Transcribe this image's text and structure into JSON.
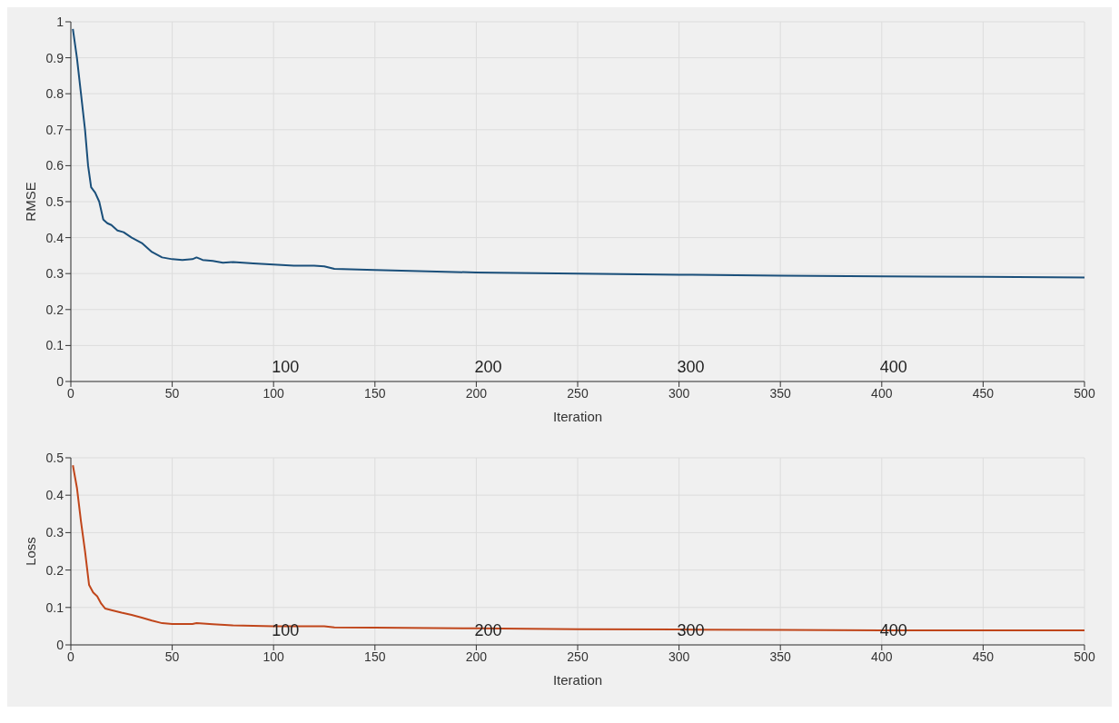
{
  "chart_data": [
    {
      "type": "line",
      "xlabel": "Iteration",
      "ylabel": "RMSE",
      "xlim": [
        0,
        500
      ],
      "xticks": [
        0,
        50,
        100,
        150,
        200,
        250,
        300,
        350,
        400,
        450,
        500
      ],
      "ylim": [
        0,
        1
      ],
      "yticks": [
        0,
        0.1,
        0.2,
        0.3,
        0.4,
        0.5,
        0.6,
        0.7,
        0.8,
        0.9,
        1
      ],
      "grid": true,
      "marker": "none",
      "line_style": "solid",
      "annotations": [
        "100",
        "200",
        "300",
        "400"
      ],
      "series": [
        {
          "color": "#1a4f7a",
          "x": [
            1,
            3,
            5,
            7,
            8.5,
            10,
            12,
            14,
            16,
            18,
            20,
            23,
            26,
            30,
            35,
            40,
            45,
            50,
            55,
            60,
            62,
            65,
            70,
            75,
            80,
            90,
            100,
            110,
            120,
            125,
            130,
            150,
            200,
            250,
            300,
            350,
            400,
            450,
            500
          ],
          "values": [
            0.98,
            0.9,
            0.8,
            0.7,
            0.6,
            0.54,
            0.525,
            0.5,
            0.45,
            0.44,
            0.435,
            0.42,
            0.415,
            0.4,
            0.385,
            0.36,
            0.345,
            0.34,
            0.338,
            0.34,
            0.345,
            0.338,
            0.335,
            0.33,
            0.332,
            0.328,
            0.325,
            0.322,
            0.322,
            0.32,
            0.313,
            0.31,
            0.303,
            0.3,
            0.297,
            0.294,
            0.292,
            0.291,
            0.289
          ]
        }
      ]
    },
    {
      "type": "line",
      "xlabel": "Iteration",
      "ylabel": "Loss",
      "xlim": [
        0,
        500
      ],
      "xticks": [
        0,
        50,
        100,
        150,
        200,
        250,
        300,
        350,
        400,
        450,
        500
      ],
      "ylim": [
        0,
        0.5
      ],
      "yticks": [
        0,
        0.1,
        0.2,
        0.3,
        0.4,
        0.5
      ],
      "grid": true,
      "marker": "none",
      "line_style": "solid",
      "annotations": [
        "100",
        "200",
        "300",
        "400"
      ],
      "series": [
        {
          "color": "#c0461b",
          "x": [
            1,
            3,
            5,
            7,
            9,
            11,
            13,
            15,
            17,
            20,
            25,
            30,
            35,
            40,
            45,
            50,
            60,
            62,
            70,
            80,
            100,
            125,
            130,
            150,
            200,
            250,
            300,
            350,
            400,
            450,
            500
          ],
          "values": [
            0.48,
            0.42,
            0.33,
            0.25,
            0.16,
            0.14,
            0.13,
            0.11,
            0.097,
            0.093,
            0.086,
            0.08,
            0.073,
            0.065,
            0.058,
            0.056,
            0.056,
            0.058,
            0.055,
            0.052,
            0.05,
            0.05,
            0.047,
            0.046,
            0.044,
            0.042,
            0.041,
            0.04,
            0.039,
            0.039,
            0.039
          ]
        }
      ]
    }
  ]
}
